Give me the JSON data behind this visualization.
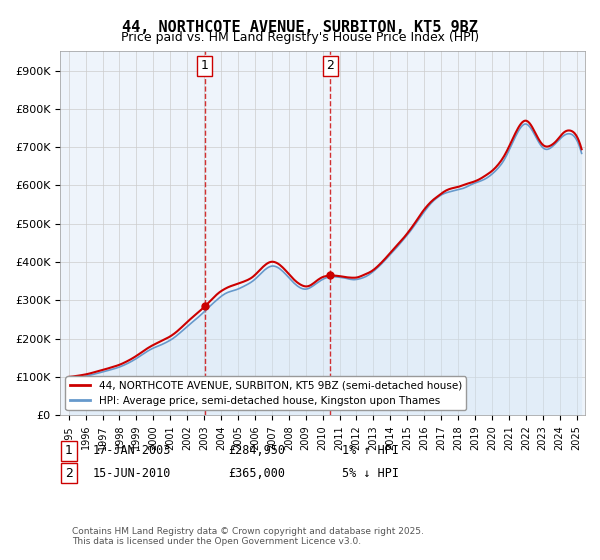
{
  "title": "44, NORTHCOTE AVENUE, SURBITON, KT5 9BZ",
  "subtitle": "Price paid vs. HM Land Registry's House Price Index (HPI)",
  "legend_line1": "44, NORTHCOTE AVENUE, SURBITON, KT5 9BZ (semi-detached house)",
  "legend_line2": "HPI: Average price, semi-detached house, Kingston upon Thames",
  "footer": "Contains HM Land Registry data © Crown copyright and database right 2025.\nThis data is licensed under the Open Government Licence v3.0.",
  "sale1_label": "1",
  "sale1_date": "17-JAN-2003",
  "sale1_price": "£284,950",
  "sale1_hpi": "1% ↑ HPI",
  "sale2_label": "2",
  "sale2_date": "15-JUN-2010",
  "sale2_price": "£365,000",
  "sale2_hpi": "5% ↓ HPI",
  "sale1_x": 2003.04,
  "sale1_y": 284950,
  "sale2_x": 2010.46,
  "sale2_y": 365000,
  "ylim_min": 0,
  "ylim_max": 950000,
  "yticks": [
    0,
    100000,
    200000,
    300000,
    400000,
    500000,
    600000,
    700000,
    800000,
    900000
  ],
  "ytick_labels": [
    "£0",
    "£100K",
    "£200K",
    "£300K",
    "£400K",
    "£500K",
    "£600K",
    "£700K",
    "£800K",
    "£900K"
  ],
  "line_color_property": "#cc0000",
  "line_color_hpi": "#6699cc",
  "line_color_hpi_fill": "#d0e4f5",
  "grid_color": "#cccccc",
  "bg_color": "#ffffff",
  "sale_marker_color": "#cc0000",
  "sale_vline_color": "#cc0000",
  "xlim_min": 1994.5,
  "xlim_max": 2025.5
}
